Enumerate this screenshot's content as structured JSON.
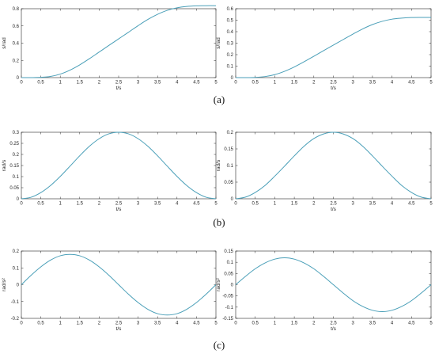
{
  "figure": {
    "captions": [
      "(a)",
      "(b)",
      "(c)"
    ]
  },
  "chart_data": [
    {
      "type": "line",
      "row": 0,
      "col": 0,
      "xlabel": "t/s",
      "ylabel": "s/rad",
      "xlim": [
        0,
        5
      ],
      "ylim": [
        0,
        0.8
      ],
      "xticks": [
        "0",
        "0.5",
        "1",
        "1.5",
        "2",
        "2.5",
        "3",
        "3.5",
        "4",
        "4.5",
        "5"
      ],
      "yticks": [
        "0",
        "0.2",
        "0.4",
        "0.6",
        "0.8"
      ],
      "series": [
        {
          "color": "#4a9fb8",
          "x": [
            0,
            0.25,
            0.5,
            0.75,
            1,
            1.25,
            1.5,
            1.75,
            2,
            2.25,
            2.5,
            2.75,
            3,
            3.25,
            3.5,
            3.75,
            4,
            4.25,
            4.5,
            4.75,
            5
          ],
          "y": [
            0,
            0.0002,
            0.003,
            0.014,
            0.041,
            0.087,
            0.148,
            0.22,
            0.297,
            0.374,
            0.45,
            0.526,
            0.603,
            0.675,
            0.735,
            0.781,
            0.81,
            0.826,
            0.833,
            0.835,
            0.835
          ]
        }
      ]
    },
    {
      "type": "line",
      "row": 0,
      "col": 1,
      "xlabel": "t/s",
      "ylabel": "s/rad",
      "xlim": [
        0,
        5
      ],
      "ylim": [
        0,
        0.6
      ],
      "xticks": [
        "0",
        "0.5",
        "1",
        "1.5",
        "2",
        "2.5",
        "3",
        "3.5",
        "4",
        "4.5",
        "5"
      ],
      "yticks": [
        "0",
        "0.1",
        "0.2",
        "0.3",
        "0.4",
        "0.5",
        "0.6"
      ],
      "series": [
        {
          "color": "#4a9fb8",
          "x": [
            0,
            0.25,
            0.5,
            0.75,
            1,
            1.25,
            1.5,
            1.75,
            2,
            2.25,
            2.5,
            2.75,
            3,
            3.25,
            3.5,
            3.75,
            4,
            4.25,
            4.5,
            4.75,
            5
          ],
          "y": [
            0,
            0.0001,
            0.002,
            0.009,
            0.026,
            0.055,
            0.093,
            0.138,
            0.186,
            0.235,
            0.283,
            0.331,
            0.379,
            0.424,
            0.462,
            0.49,
            0.509,
            0.518,
            0.523,
            0.524,
            0.524
          ]
        }
      ]
    },
    {
      "type": "line",
      "row": 1,
      "col": 0,
      "xlabel": "t/s",
      "ylabel": "rad/s",
      "xlim": [
        0,
        5
      ],
      "ylim": [
        0,
        0.3
      ],
      "xticks": [
        "0",
        "0.5",
        "1",
        "1.5",
        "2",
        "2.5",
        "3",
        "3.5",
        "4",
        "4.5",
        "5"
      ],
      "yticks": [
        "0",
        "0.05",
        "0.1",
        "0.15",
        "0.2",
        "0.25",
        "0.3"
      ],
      "series": [
        {
          "color": "#4a9fb8",
          "x": [
            0,
            0.25,
            0.5,
            0.75,
            1,
            1.25,
            1.5,
            1.75,
            2,
            2.25,
            2.5,
            2.75,
            3,
            3.25,
            3.5,
            3.75,
            4,
            4.25,
            4.5,
            4.75,
            5
          ],
          "y": [
            0,
            0.007,
            0.028,
            0.06,
            0.101,
            0.147,
            0.194,
            0.237,
            0.271,
            0.293,
            0.3,
            0.293,
            0.271,
            0.237,
            0.194,
            0.147,
            0.101,
            0.06,
            0.028,
            0.007,
            0
          ]
        }
      ]
    },
    {
      "type": "line",
      "row": 1,
      "col": 1,
      "xlabel": "t/s",
      "ylabel": "rad/s",
      "xlim": [
        0,
        5
      ],
      "ylim": [
        0,
        0.2
      ],
      "xticks": [
        "0",
        "0.5",
        "1",
        "1.5",
        "2",
        "2.5",
        "3",
        "3.5",
        "4",
        "4.5",
        "5"
      ],
      "yticks": [
        "0",
        "0.05",
        "0.1",
        "0.15",
        "0.2"
      ],
      "series": [
        {
          "color": "#4a9fb8",
          "x": [
            0,
            0.25,
            0.5,
            0.75,
            1,
            1.25,
            1.5,
            1.75,
            2,
            2.25,
            2.5,
            2.75,
            3,
            3.25,
            3.5,
            3.75,
            4,
            4.25,
            4.5,
            4.75,
            5
          ],
          "y": [
            0,
            0.005,
            0.019,
            0.04,
            0.068,
            0.098,
            0.129,
            0.158,
            0.181,
            0.195,
            0.2,
            0.195,
            0.181,
            0.158,
            0.129,
            0.098,
            0.068,
            0.04,
            0.019,
            0.005,
            0
          ]
        }
      ]
    },
    {
      "type": "line",
      "row": 2,
      "col": 0,
      "xlabel": "t/s",
      "ylabel": "rad/s²",
      "xlim": [
        0,
        5
      ],
      "ylim": [
        -0.2,
        0.2
      ],
      "xticks": [
        "0",
        "0.5",
        "1",
        "1.5",
        "2",
        "2.5",
        "3",
        "3.5",
        "4",
        "4.5",
        "5"
      ],
      "yticks": [
        "-0.2",
        "-0.1",
        "0",
        "0.1",
        "0.2"
      ],
      "series": [
        {
          "color": "#4a9fb8",
          "x": [
            0,
            0.25,
            0.5,
            0.75,
            1,
            1.25,
            1.5,
            1.75,
            2,
            2.25,
            2.5,
            2.75,
            3,
            3.25,
            3.5,
            3.75,
            4,
            4.25,
            4.5,
            4.75,
            5
          ],
          "y": [
            0,
            0.056,
            0.106,
            0.146,
            0.172,
            0.18,
            0.172,
            0.146,
            0.106,
            0.056,
            0,
            -0.056,
            -0.106,
            -0.146,
            -0.172,
            -0.18,
            -0.172,
            -0.146,
            -0.106,
            -0.056,
            0
          ]
        }
      ]
    },
    {
      "type": "line",
      "row": 2,
      "col": 1,
      "xlabel": "t/s",
      "ylabel": "rad/s²",
      "xlim": [
        0,
        5
      ],
      "ylim": [
        -0.15,
        0.15
      ],
      "xticks": [
        "0",
        "0.5",
        "1",
        "1.5",
        "2",
        "2.5",
        "3",
        "3.5",
        "4",
        "4.5",
        "5"
      ],
      "yticks": [
        "-0.15",
        "-0.1",
        "-0.05",
        "0",
        "0.05",
        "0.1",
        "0.15"
      ],
      "series": [
        {
          "color": "#4a9fb8",
          "x": [
            0,
            0.25,
            0.5,
            0.75,
            1,
            1.25,
            1.5,
            1.75,
            2,
            2.25,
            2.5,
            2.75,
            3,
            3.25,
            3.5,
            3.75,
            4,
            4.25,
            4.5,
            4.75,
            5
          ],
          "y": [
            0,
            0.037,
            0.071,
            0.097,
            0.114,
            0.12,
            0.114,
            0.097,
            0.071,
            0.037,
            0,
            -0.037,
            -0.071,
            -0.097,
            -0.114,
            -0.12,
            -0.114,
            -0.097,
            -0.071,
            -0.037,
            0
          ]
        }
      ]
    }
  ]
}
